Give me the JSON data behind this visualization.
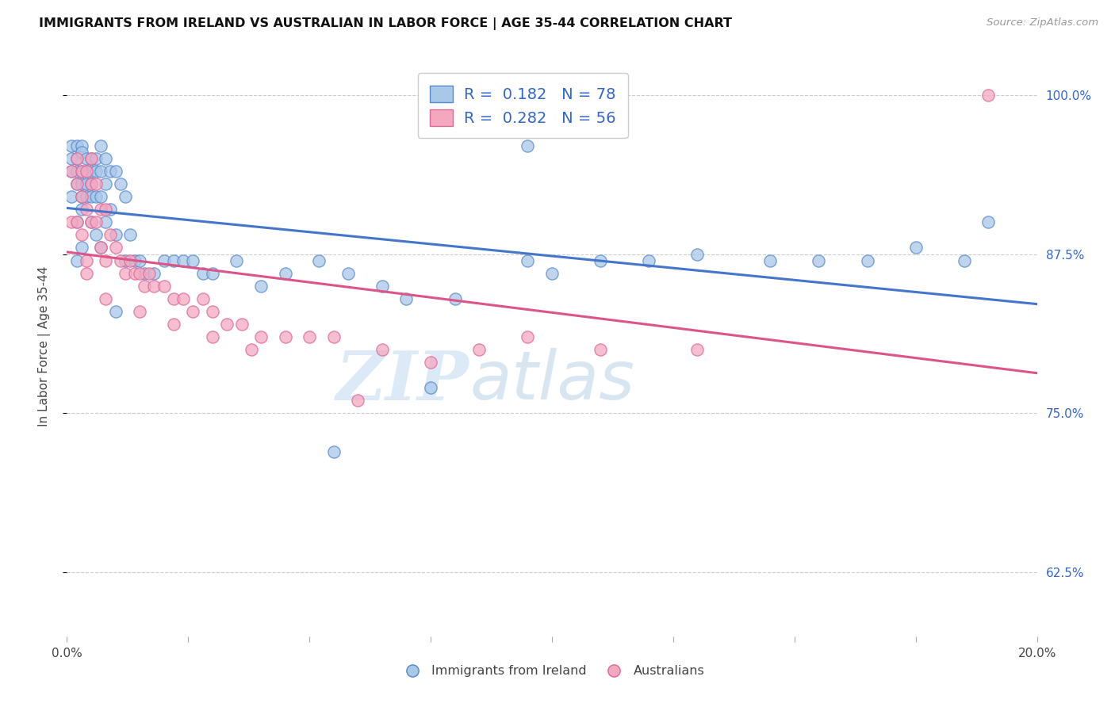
{
  "title": "IMMIGRANTS FROM IRELAND VS AUSTRALIAN IN LABOR FORCE | AGE 35-44 CORRELATION CHART",
  "source": "Source: ZipAtlas.com",
  "ylabel": "In Labor Force | Age 35-44",
  "xlim": [
    0.0,
    0.2
  ],
  "ylim": [
    0.575,
    1.03
  ],
  "yticks": [
    0.625,
    0.75,
    0.875,
    1.0
  ],
  "ytick_labels": [
    "62.5%",
    "75.0%",
    "87.5%",
    "100.0%"
  ],
  "xticks": [
    0.0,
    0.025,
    0.05,
    0.075,
    0.1,
    0.125,
    0.15,
    0.175,
    0.2
  ],
  "xtick_labels": [
    "0.0%",
    "",
    "",
    "",
    "",
    "",
    "",
    "",
    "20.0%"
  ],
  "watermark_zip": "ZIP",
  "watermark_atlas": "atlas",
  "blue_R": 0.182,
  "blue_N": 78,
  "pink_R": 0.282,
  "pink_N": 56,
  "blue_color": "#a8c8e8",
  "pink_color": "#f4a8c0",
  "blue_edge_color": "#5588cc",
  "pink_edge_color": "#dd6699",
  "blue_line_color": "#4477cc",
  "pink_line_color": "#dd5588",
  "tick_color": "#3366cc",
  "legend_text_color": "#3366cc",
  "blue_scatter_x": [
    0.001,
    0.001,
    0.001,
    0.001,
    0.002,
    0.002,
    0.002,
    0.002,
    0.002,
    0.002,
    0.003,
    0.003,
    0.003,
    0.003,
    0.003,
    0.003,
    0.003,
    0.004,
    0.004,
    0.004,
    0.004,
    0.005,
    0.005,
    0.005,
    0.005,
    0.005,
    0.006,
    0.006,
    0.006,
    0.006,
    0.007,
    0.007,
    0.007,
    0.007,
    0.008,
    0.008,
    0.008,
    0.009,
    0.009,
    0.01,
    0.01,
    0.011,
    0.012,
    0.012,
    0.013,
    0.014,
    0.015,
    0.016,
    0.018,
    0.02,
    0.022,
    0.024,
    0.026,
    0.028,
    0.03,
    0.035,
    0.04,
    0.045,
    0.052,
    0.058,
    0.065,
    0.07,
    0.08,
    0.095,
    0.1,
    0.11,
    0.12,
    0.13,
    0.145,
    0.155,
    0.165,
    0.175,
    0.185,
    0.01,
    0.055,
    0.075,
    0.19,
    0.095
  ],
  "blue_scatter_y": [
    0.96,
    0.95,
    0.94,
    0.92,
    0.96,
    0.95,
    0.94,
    0.93,
    0.9,
    0.87,
    0.96,
    0.955,
    0.94,
    0.93,
    0.92,
    0.91,
    0.88,
    0.95,
    0.94,
    0.93,
    0.92,
    0.95,
    0.94,
    0.93,
    0.92,
    0.9,
    0.95,
    0.94,
    0.92,
    0.89,
    0.96,
    0.94,
    0.92,
    0.88,
    0.95,
    0.93,
    0.9,
    0.94,
    0.91,
    0.94,
    0.89,
    0.93,
    0.92,
    0.87,
    0.89,
    0.87,
    0.87,
    0.86,
    0.86,
    0.87,
    0.87,
    0.87,
    0.87,
    0.86,
    0.86,
    0.87,
    0.85,
    0.86,
    0.87,
    0.86,
    0.85,
    0.84,
    0.84,
    0.87,
    0.86,
    0.87,
    0.87,
    0.875,
    0.87,
    0.87,
    0.87,
    0.88,
    0.87,
    0.83,
    0.72,
    0.77,
    0.9,
    0.96
  ],
  "pink_scatter_x": [
    0.001,
    0.001,
    0.002,
    0.002,
    0.002,
    0.003,
    0.003,
    0.003,
    0.004,
    0.004,
    0.004,
    0.005,
    0.005,
    0.005,
    0.006,
    0.006,
    0.007,
    0.007,
    0.008,
    0.008,
    0.009,
    0.01,
    0.011,
    0.012,
    0.013,
    0.014,
    0.015,
    0.016,
    0.017,
    0.018,
    0.02,
    0.022,
    0.024,
    0.026,
    0.028,
    0.03,
    0.033,
    0.036,
    0.04,
    0.045,
    0.05,
    0.055,
    0.065,
    0.075,
    0.085,
    0.095,
    0.11,
    0.13,
    0.004,
    0.008,
    0.015,
    0.022,
    0.03,
    0.038,
    0.06,
    0.19
  ],
  "pink_scatter_y": [
    0.94,
    0.9,
    0.95,
    0.93,
    0.9,
    0.94,
    0.92,
    0.89,
    0.94,
    0.91,
    0.87,
    0.95,
    0.93,
    0.9,
    0.93,
    0.9,
    0.91,
    0.88,
    0.91,
    0.87,
    0.89,
    0.88,
    0.87,
    0.86,
    0.87,
    0.86,
    0.86,
    0.85,
    0.86,
    0.85,
    0.85,
    0.84,
    0.84,
    0.83,
    0.84,
    0.83,
    0.82,
    0.82,
    0.81,
    0.81,
    0.81,
    0.81,
    0.8,
    0.79,
    0.8,
    0.81,
    0.8,
    0.8,
    0.86,
    0.84,
    0.83,
    0.82,
    0.81,
    0.8,
    0.76,
    1.0
  ]
}
